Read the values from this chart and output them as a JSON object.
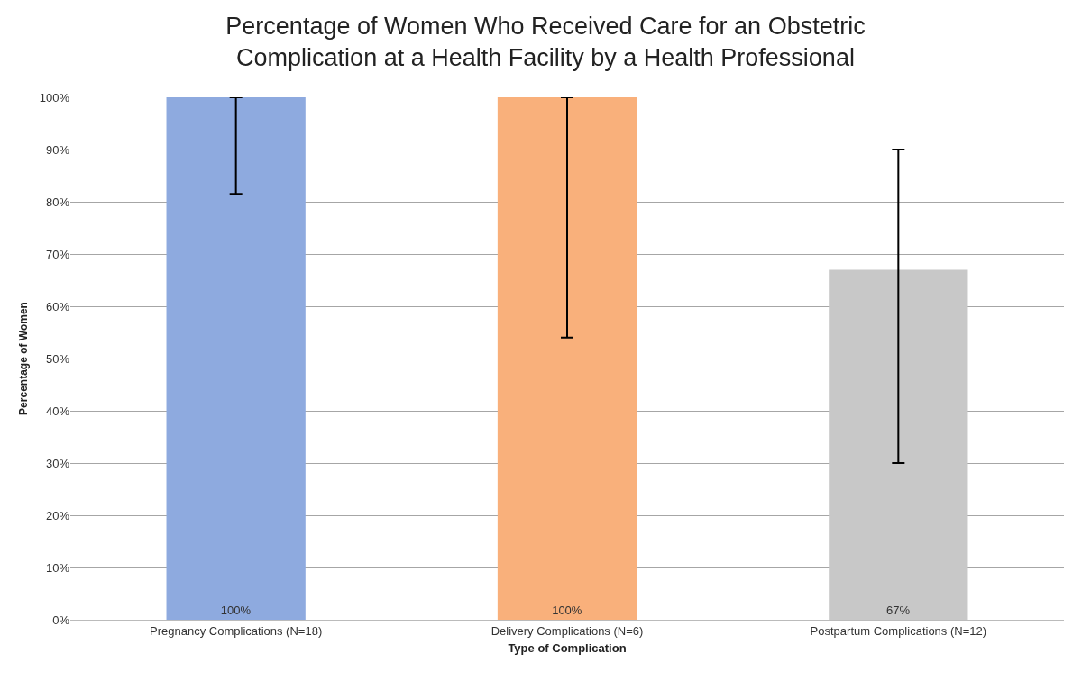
{
  "chart_data": {
    "type": "bar",
    "title": "Percentage of Women Who Received Care for an Obstetric\nComplication at a Health Facility by a Health Professional",
    "xlabel": "Type of Complication",
    "ylabel": "Percentage of Women",
    "categories": [
      "Pregnancy Complications (N=18)",
      "Delivery Complications (N=6)",
      "Postpartum Complications (N=12)"
    ],
    "values": [
      100,
      100,
      67
    ],
    "value_labels": [
      "100%",
      "100%",
      "67%"
    ],
    "colors": [
      "#8eaadf",
      "#f9b07b",
      "#c8c8c8"
    ],
    "errors": [
      [
        81.5,
        100
      ],
      [
        54,
        100
      ],
      [
        30,
        90
      ]
    ],
    "ylim": [
      0,
      100
    ],
    "yticks": [
      {
        "value": 0,
        "label": "0%"
      },
      {
        "value": 10,
        "label": "10%"
      },
      {
        "value": 20,
        "label": "20%"
      },
      {
        "value": 30,
        "label": "30%"
      },
      {
        "value": 40,
        "label": "40%"
      },
      {
        "value": 50,
        "label": "50%"
      },
      {
        "value": 60,
        "label": "60%"
      },
      {
        "value": 70,
        "label": "70%"
      },
      {
        "value": 80,
        "label": "80%"
      },
      {
        "value": 90,
        "label": "90%"
      },
      {
        "value": 100,
        "label": "100%"
      }
    ],
    "grid": "y"
  }
}
